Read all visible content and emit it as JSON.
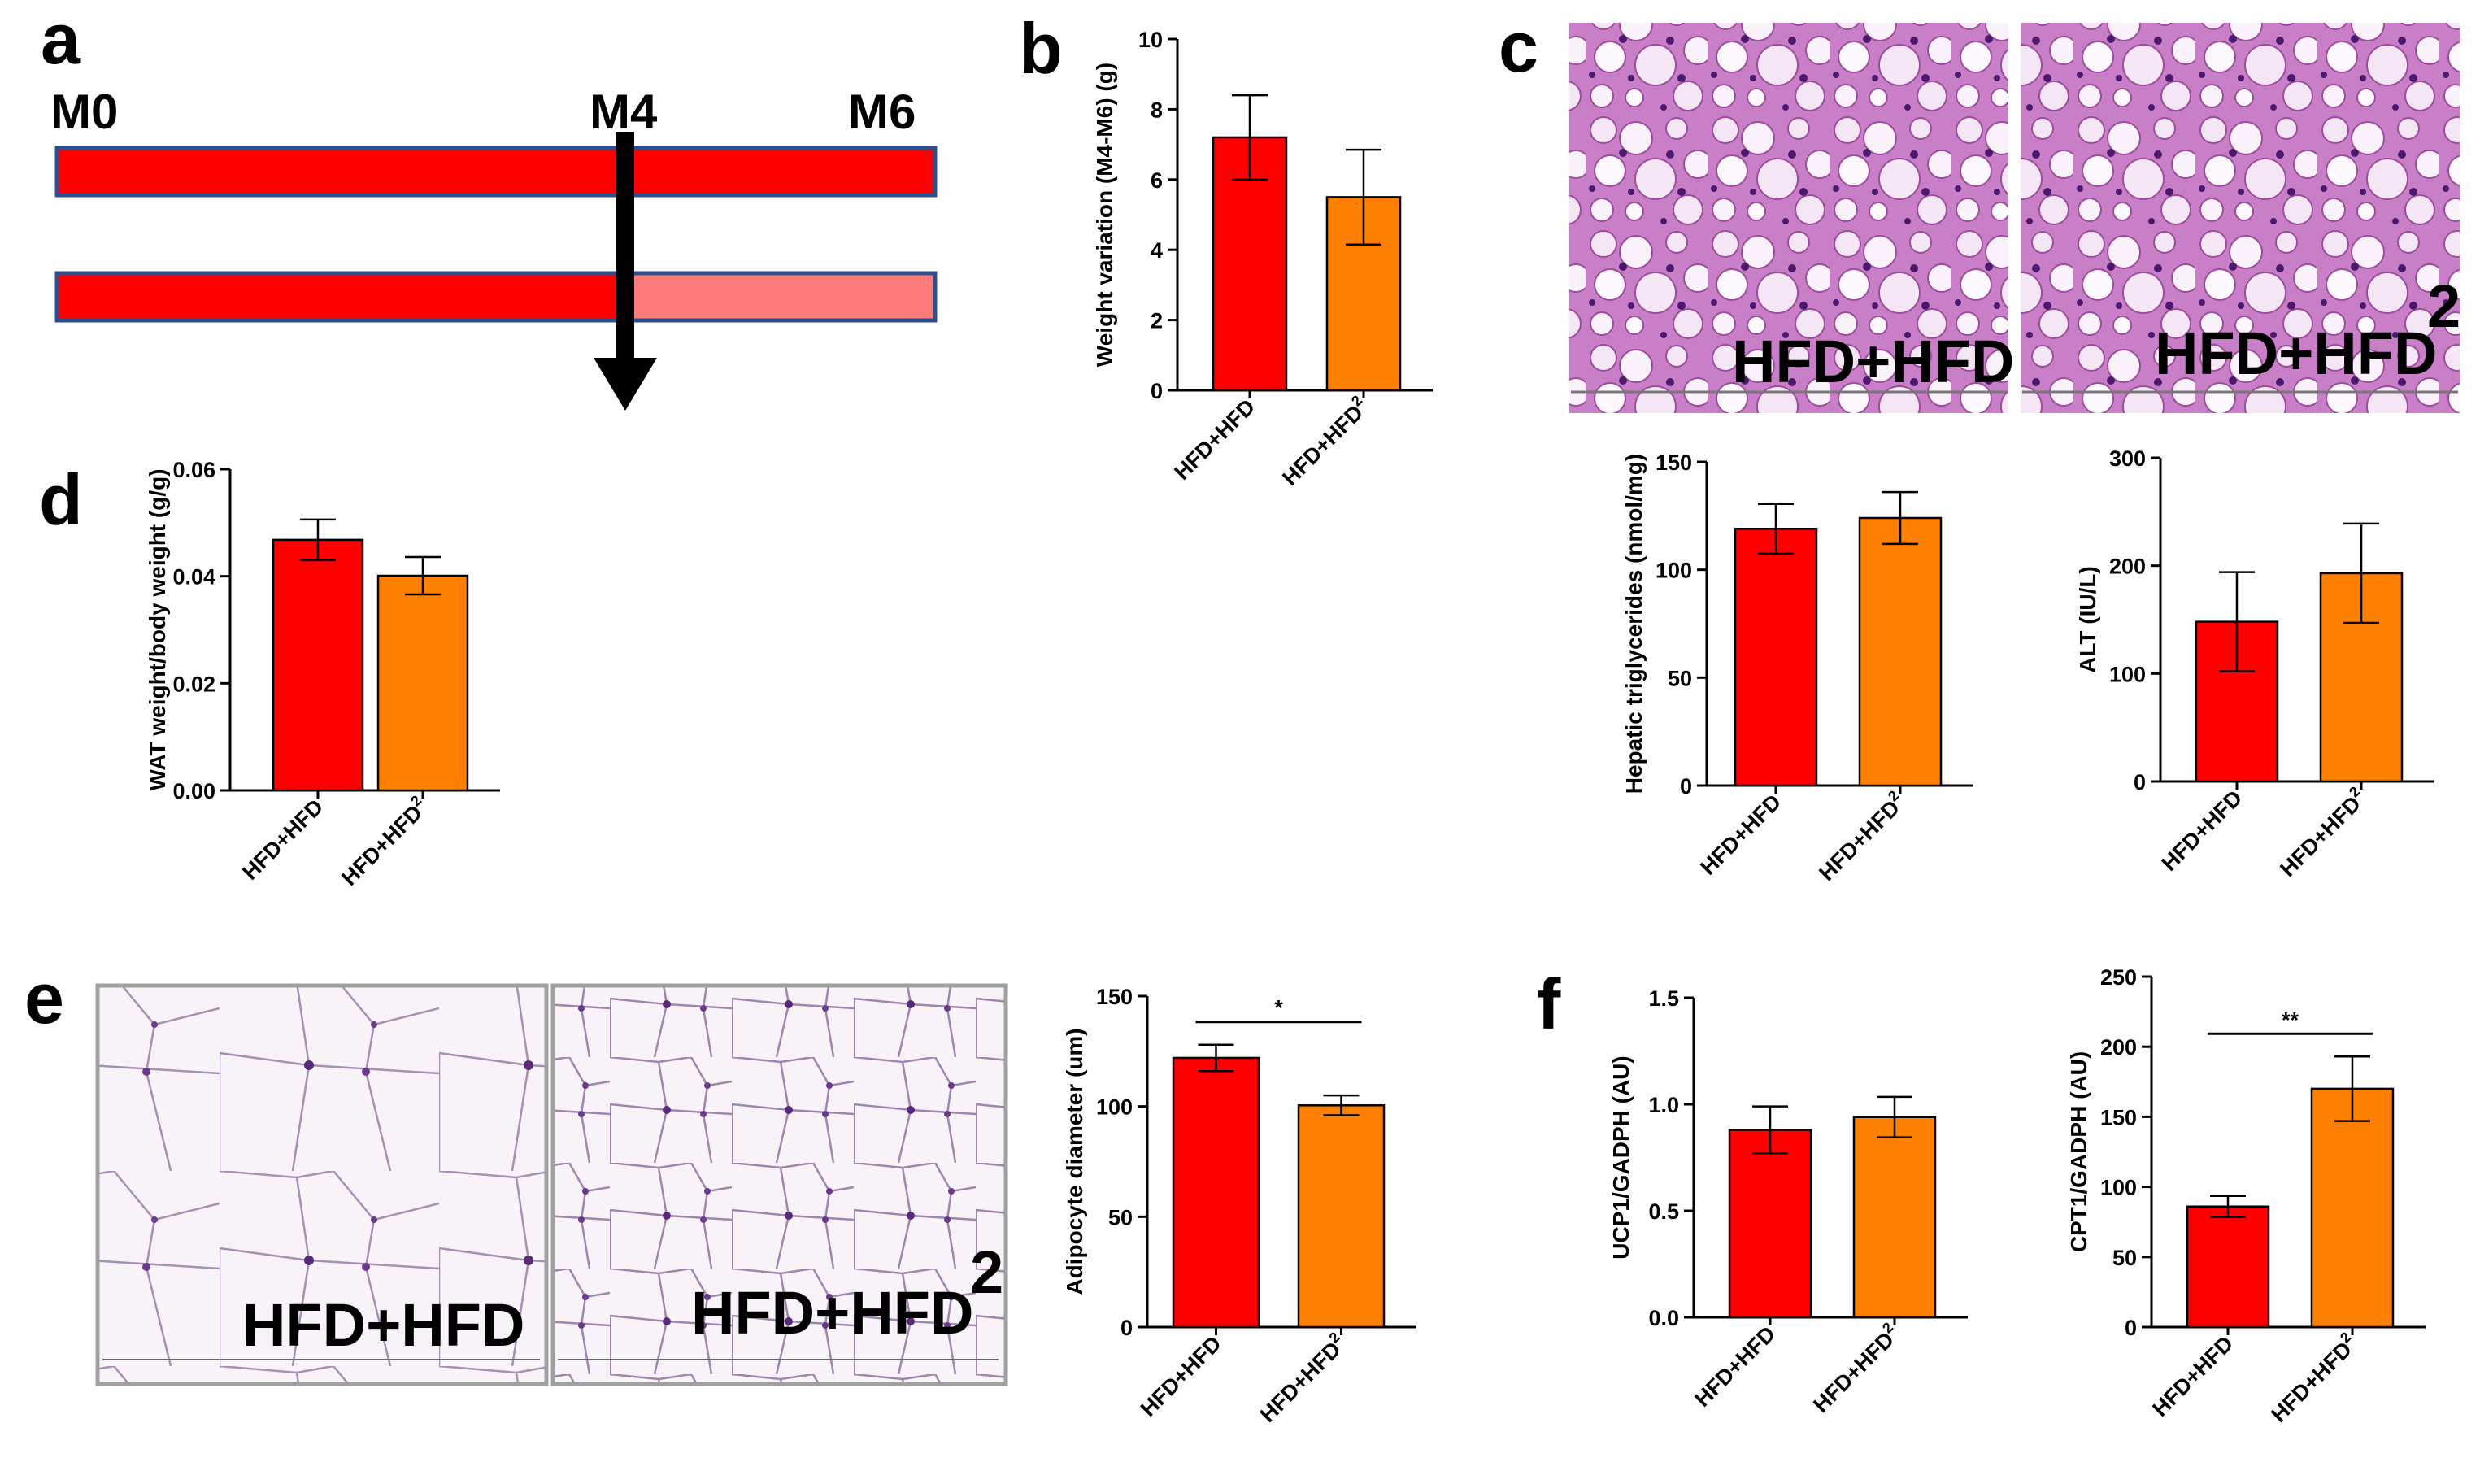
{
  "panels": {
    "a": "a",
    "b": "b",
    "c": "c",
    "d": "d",
    "e": "e",
    "f": "f"
  },
  "timeline": {
    "labels": [
      "M0",
      "M4",
      "M6"
    ],
    "colors": {
      "hfd": "#ff0000",
      "light": "#ff7c7c",
      "border": "#2e4f8f"
    }
  },
  "micrographs": {
    "liver": [
      "HFD+HFD",
      "HFD+HFD"
    ],
    "adipose": [
      "HFD+HFD",
      "HFD+HFD"
    ],
    "superscript": "2"
  },
  "colors": {
    "red": "#ff0000",
    "orange": "#ff7f00"
  },
  "chart_data": [
    {
      "id": "b",
      "type": "bar",
      "categories": [
        "HFD+HFD",
        "HFD+HFD2"
      ],
      "values": [
        7.2,
        5.5
      ],
      "errors": [
        1.2,
        1.35
      ],
      "ylabel": "Weight variation (M4-M6) (g)",
      "ylim": [
        0,
        10
      ],
      "yticks": [
        "0",
        "2",
        "4",
        "6",
        "8",
        "10"
      ]
    },
    {
      "id": "d",
      "type": "bar",
      "categories": [
        "HFD+HFD",
        "HFD+HFD2"
      ],
      "values": [
        0.0468,
        0.0401
      ],
      "errors": [
        0.0038,
        0.0035
      ],
      "ylabel": "WAT weight/body weight (g/g)",
      "ylim": [
        0,
        0.06
      ],
      "yticks": [
        "0.00",
        "0.02",
        "0.04",
        "0.06"
      ]
    },
    {
      "id": "c1",
      "type": "bar",
      "categories": [
        "HFD+HFD",
        "HFD+HFD2"
      ],
      "values": [
        119,
        124
      ],
      "errors": [
        11.5,
        12
      ],
      "ylabel": "Hepatic triglycerides (nmol/mg)",
      "ylim": [
        0,
        150
      ],
      "yticks": [
        "0",
        "50",
        "100",
        "150"
      ]
    },
    {
      "id": "c2",
      "type": "bar",
      "categories": [
        "HFD+HFD",
        "HFD+HFD2"
      ],
      "values": [
        148,
        193
      ],
      "errors": [
        46,
        46
      ],
      "ylabel": "ALT (IU/L)",
      "ylim": [
        0,
        300
      ],
      "yticks": [
        "0",
        "100",
        "200",
        "300"
      ]
    },
    {
      "id": "e",
      "type": "bar",
      "categories": [
        "HFD+HFD",
        "HFD+HFD2"
      ],
      "values": [
        122,
        100.5
      ],
      "errors": [
        6,
        4.5
      ],
      "ylabel": "Adipocyte diameter (um)",
      "ylim": [
        0,
        150
      ],
      "yticks": [
        "0",
        "50",
        "100",
        "150"
      ],
      "significance": "*"
    },
    {
      "id": "f1",
      "type": "bar",
      "categories": [
        "HFD+HFD",
        "HFD+HFD2"
      ],
      "values": [
        0.88,
        0.94
      ],
      "errors": [
        0.11,
        0.095
      ],
      "ylabel": "UCP1/GADPH (AU)",
      "ylim": [
        0,
        1.5
      ],
      "yticks": [
        "0.0",
        "0.5",
        "1.0",
        "1.5"
      ]
    },
    {
      "id": "f2",
      "type": "bar",
      "categories": [
        "HFD+HFD",
        "HFD+HFD2"
      ],
      "values": [
        86,
        170
      ],
      "errors": [
        7.5,
        23
      ],
      "ylabel": "CPT1/GADPH (AU)",
      "ylim": [
        0,
        250
      ],
      "yticks": [
        "0",
        "50",
        "100",
        "150",
        "200",
        "250"
      ],
      "significance": "**"
    }
  ]
}
